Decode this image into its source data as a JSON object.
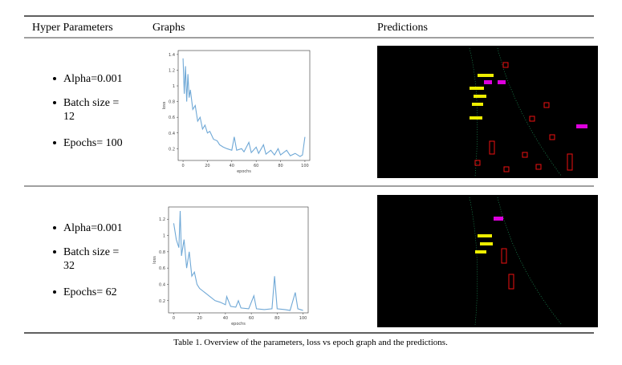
{
  "table": {
    "headers": [
      "Hyper Parameters",
      "Graphs",
      "Predictions"
    ],
    "rows": [
      {
        "params": [
          "Alpha=0.001",
          "Batch size =",
          "12",
          "Epochs= 100"
        ],
        "graph": {
          "type": "line",
          "xlabel": "epochs",
          "ylabel": "loss",
          "color": "#6fa8d6",
          "x": [
            0,
            1,
            2,
            3,
            4,
            5,
            6,
            8,
            10,
            12,
            14,
            16,
            18,
            20,
            22,
            25,
            28,
            30,
            33,
            36,
            40,
            42,
            44,
            48,
            50,
            54,
            56,
            60,
            62,
            66,
            68,
            72,
            75,
            78,
            80,
            85,
            88,
            92,
            96,
            98,
            100
          ],
          "values": [
            1.35,
            0.9,
            1.25,
            0.8,
            1.15,
            0.85,
            0.95,
            0.7,
            0.75,
            0.55,
            0.6,
            0.45,
            0.5,
            0.4,
            0.42,
            0.32,
            0.3,
            0.25,
            0.22,
            0.2,
            0.18,
            0.35,
            0.18,
            0.2,
            0.16,
            0.28,
            0.15,
            0.22,
            0.14,
            0.25,
            0.13,
            0.18,
            0.12,
            0.2,
            0.12,
            0.18,
            0.11,
            0.14,
            0.1,
            0.12,
            0.35
          ],
          "xlim": [
            -4,
            104
          ],
          "ylim": [
            0.05,
            1.45
          ],
          "xticks": [
            0,
            20,
            40,
            60,
            80,
            100
          ],
          "yticks": [
            0.2,
            0.4,
            0.6,
            0.8,
            1.0,
            1.2,
            1.4
          ]
        }
      },
      {
        "params": [
          "Alpha=0.001",
          "Batch size =",
          "32",
          "Epochs= 62"
        ],
        "graph": {
          "type": "line",
          "xlabel": "epochs",
          "ylabel": "loss",
          "color": "#6fa8d6",
          "x": [
            0,
            2,
            4,
            5,
            6,
            8,
            10,
            12,
            14,
            16,
            18,
            20,
            24,
            28,
            32,
            36,
            40,
            41,
            44,
            48,
            50,
            52,
            58,
            62,
            64,
            70,
            76,
            78,
            80,
            86,
            90,
            94,
            96,
            100
          ],
          "values": [
            1.15,
            0.95,
            0.85,
            1.3,
            0.75,
            0.95,
            0.6,
            0.8,
            0.5,
            0.55,
            0.4,
            0.35,
            0.3,
            0.25,
            0.2,
            0.18,
            0.15,
            0.25,
            0.13,
            0.12,
            0.2,
            0.11,
            0.1,
            0.26,
            0.1,
            0.09,
            0.1,
            0.5,
            0.1,
            0.09,
            0.08,
            0.3,
            0.1,
            0.08
          ],
          "xlim": [
            -4,
            104
          ],
          "ylim": [
            0.05,
            1.35
          ],
          "xticks": [
            0,
            20,
            40,
            60,
            80,
            100
          ],
          "yticks": [
            0.2,
            0.4,
            0.6,
            0.8,
            1.0,
            1.2
          ]
        }
      }
    ]
  },
  "caption": "Table 1. Overview of the parameters, loss vs epoch graph and the predictions."
}
